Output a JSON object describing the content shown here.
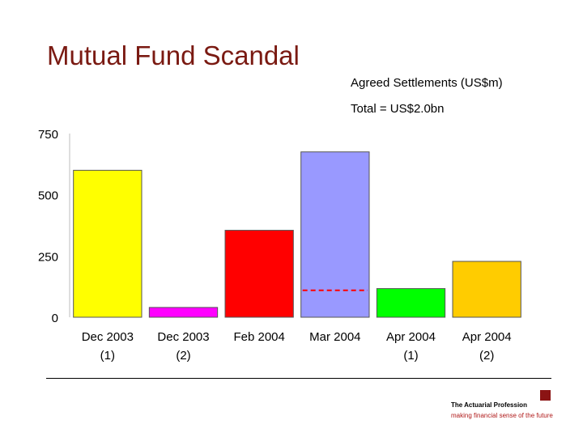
{
  "slide": {
    "title": "Mutual Fund Scandal"
  },
  "chart_data": {
    "type": "bar",
    "title": "Agreed Settlements (US$m)",
    "subtitle": "Total = US$2.0bn",
    "categories": [
      [
        "Dec 2003",
        "(1)"
      ],
      [
        "Dec 2003",
        "(2)"
      ],
      [
        "Feb 2004",
        ""
      ],
      [
        "Mar 2004",
        ""
      ],
      [
        "Apr 2004",
        "(1)"
      ],
      [
        "Apr 2004",
        "(2)"
      ]
    ],
    "values": [
      600,
      40,
      355,
      675,
      117,
      228
    ],
    "colors": [
      "#ffff00",
      "#ff00ff",
      "#ff0000",
      "#9999ff",
      "#00ff00",
      "#ffcc00"
    ],
    "reference_line": {
      "category_index": 3,
      "value": 110,
      "color": "#ff0000"
    },
    "ylim": [
      0,
      750
    ],
    "yticks": [
      0,
      250,
      500,
      750
    ],
    "xlabel": "",
    "ylabel": "",
    "grid": false,
    "legend": "none"
  },
  "footer": {
    "organization": "The Actuarial Profession",
    "tagline": "making financial sense of the future",
    "logo_color": "#8b1414"
  }
}
